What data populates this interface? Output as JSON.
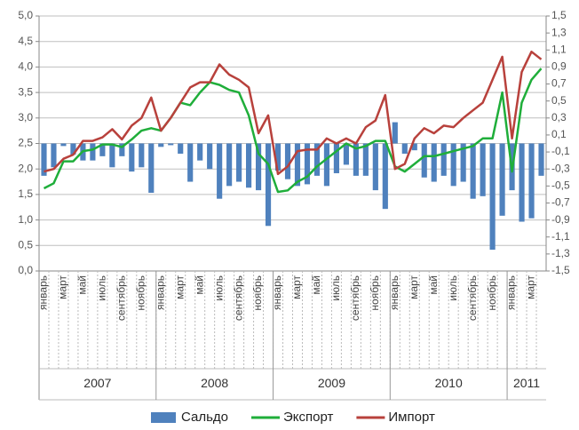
{
  "chart_data": {
    "type": "combo",
    "categories": [
      "январь",
      null,
      "март",
      null,
      "май",
      null,
      "июль",
      null,
      "сентябрь",
      null,
      "ноябрь",
      null,
      "январь",
      null,
      "март",
      null,
      "май",
      null,
      "июль",
      null,
      "сентябрь",
      null,
      "ноябрь",
      null,
      "январь",
      null,
      "март",
      null,
      "май",
      null,
      "июль",
      null,
      "сентябрь",
      null,
      "ноябрь",
      null,
      "январь",
      null,
      "март",
      null,
      "май",
      null,
      "июль",
      null,
      "сентябрь",
      null,
      "ноябрь",
      null,
      "январь",
      null,
      "март",
      null
    ],
    "groups": [
      "2007",
      "2008",
      "2009",
      "2010",
      "2011"
    ],
    "series": [
      {
        "name": "Сальдо",
        "type": "bar",
        "axis": "y2",
        "color": "#4f81bd",
        "values": [
          -0.38,
          -0.28,
          -0.03,
          -0.13,
          -0.2,
          -0.2,
          -0.15,
          -0.28,
          -0.15,
          -0.33,
          -0.28,
          -0.58,
          -0.04,
          -0.02,
          -0.12,
          -0.45,
          -0.2,
          -0.3,
          -0.65,
          -0.5,
          -0.45,
          -0.52,
          -0.55,
          -0.97,
          -0.32,
          -0.42,
          -0.5,
          -0.48,
          -0.38,
          -0.5,
          -0.35,
          -0.25,
          -0.38,
          -0.38,
          -0.55,
          -0.77,
          0.25,
          -0.12,
          -0.08,
          -0.4,
          -0.45,
          -0.38,
          -0.5,
          -0.45,
          -0.65,
          -0.62,
          -1.25,
          -0.85,
          -0.55,
          -0.92,
          -0.88,
          -0.38
        ]
      },
      {
        "name": "Экспорт",
        "type": "line",
        "color": "#1fae3a",
        "values": [
          1.62,
          1.72,
          2.15,
          2.15,
          2.35,
          2.38,
          2.48,
          2.48,
          2.43,
          2.58,
          2.75,
          2.8,
          2.75,
          3.0,
          3.3,
          3.25,
          3.5,
          3.7,
          3.65,
          3.55,
          3.5,
          3.05,
          2.3,
          2.1,
          1.55,
          1.58,
          1.75,
          1.85,
          2.05,
          2.2,
          2.35,
          2.5,
          2.4,
          2.45,
          2.55,
          2.55,
          2.05,
          1.95,
          2.1,
          2.25,
          2.25,
          2.3,
          2.35,
          2.4,
          2.45,
          2.6,
          2.6,
          3.5,
          1.95,
          3.3,
          3.75,
          3.97
        ]
      },
      {
        "name": "Импорт",
        "type": "line",
        "color": "#b8413c",
        "values": [
          1.95,
          2.0,
          2.2,
          2.28,
          2.55,
          2.55,
          2.62,
          2.78,
          2.58,
          2.85,
          3.0,
          3.4,
          2.75,
          3.0,
          3.3,
          3.6,
          3.7,
          3.7,
          4.05,
          3.85,
          3.75,
          3.6,
          2.7,
          3.05,
          1.9,
          2.05,
          2.35,
          2.38,
          2.38,
          2.6,
          2.5,
          2.6,
          2.5,
          2.82,
          2.95,
          3.45,
          2.0,
          2.1,
          2.6,
          2.8,
          2.7,
          2.85,
          2.82,
          3.0,
          3.15,
          3.3,
          3.75,
          4.2,
          2.6,
          3.9,
          4.3,
          4.15
        ]
      }
    ],
    "ylim": [
      0,
      5
    ],
    "yticks": [
      {
        "value": 0,
        "label": "0,0"
      },
      {
        "value": 0.5,
        "label": "0,5"
      },
      {
        "value": 1,
        "label": "1,0"
      },
      {
        "value": 1.5,
        "label": "1,5"
      },
      {
        "value": 2,
        "label": "2,0"
      },
      {
        "value": 2.5,
        "label": "2,5"
      },
      {
        "value": 3,
        "label": "3,0"
      },
      {
        "value": 3.5,
        "label": "3,5"
      },
      {
        "value": 4,
        "label": "4,0"
      },
      {
        "value": 4.5,
        "label": "4,5"
      },
      {
        "value": 5,
        "label": "5,0"
      }
    ],
    "y2lim": [
      -1.5,
      1.5
    ],
    "y2ticks": [
      {
        "value": -1.5,
        "label": "-1,5"
      },
      {
        "value": -1.3,
        "label": "-1,3"
      },
      {
        "value": -1.1,
        "label": "-1,1"
      },
      {
        "value": -0.9,
        "label": "-0,9"
      },
      {
        "value": -0.7,
        "label": "-0,7"
      },
      {
        "value": -0.5,
        "label": "-0,5"
      },
      {
        "value": -0.3,
        "label": "-0,3"
      },
      {
        "value": -0.1,
        "label": "-0,1"
      },
      {
        "value": 0.1,
        "label": "0,1"
      },
      {
        "value": 0.3,
        "label": "0,3"
      },
      {
        "value": 0.5,
        "label": "0,5"
      },
      {
        "value": 0.7,
        "label": "0,7"
      },
      {
        "value": 0.9,
        "label": "0,9"
      },
      {
        "value": 1.1,
        "label": "1,1"
      },
      {
        "value": 1.3,
        "label": "1,3"
      },
      {
        "value": 1.5,
        "label": "1,5"
      }
    ],
    "grid": true,
    "legend": "bottom"
  }
}
